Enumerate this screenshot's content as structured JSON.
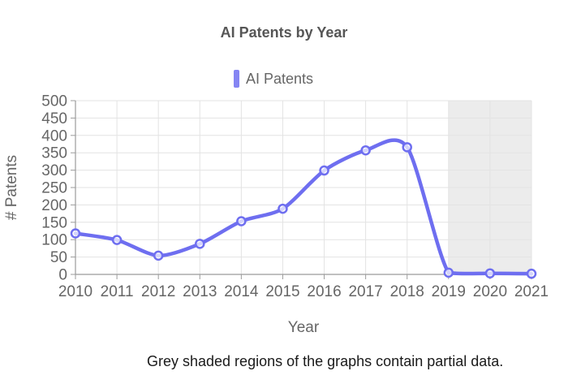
{
  "page": {
    "footer_note": "Grey shaded regions of the graphs contain partial data."
  },
  "chart_data": {
    "type": "line",
    "title": "AI Patents by Year",
    "xlabel": "Year",
    "ylabel": "# Patents",
    "x": [
      2010,
      2011,
      2012,
      2013,
      2014,
      2015,
      2016,
      2017,
      2018,
      2019,
      2020,
      2021
    ],
    "series": [
      {
        "name": "AI Patents",
        "values": [
          118,
          99,
          54,
          88,
          153,
          189,
          299,
          357,
          366,
          5,
          3,
          2
        ]
      }
    ],
    "ylim": [
      0,
      500
    ],
    "ytick_step": 50,
    "grid": true,
    "legend_position": "top",
    "marker_style": "circle-open",
    "shaded_region": {
      "x_start": 2019,
      "x_end": 2021,
      "note": "partial data"
    },
    "colors": {
      "line": "#6e6ef0",
      "legend_marker": "#8585f3",
      "marker_fill": "#ffffff",
      "grid": "#e3e3e3",
      "axis": "#9b9b9b",
      "tick_text": "#666666",
      "title_text": "#565656",
      "region_fill": "#ececec",
      "footer_text": "#1a1a1a"
    }
  }
}
